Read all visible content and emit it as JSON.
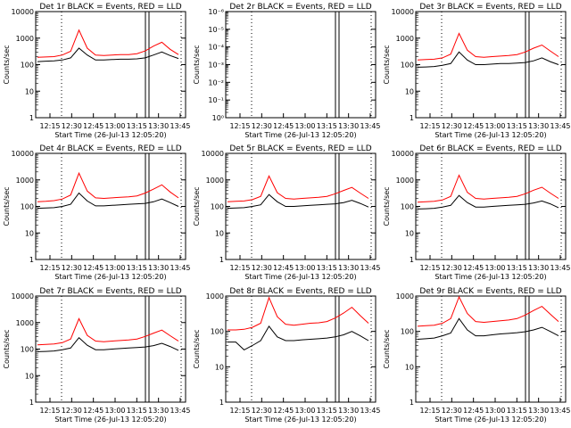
{
  "chart_data": [
    {
      "type": "line",
      "title": "Det 1r BLACK = Events, RED = LLD",
      "xlabel": "Start Time (26-Jul-13 12:05:20)",
      "ylabel": "Counts/sec",
      "yscale": "log",
      "ylim": [
        1,
        10000
      ],
      "yticks": [
        "1",
        "10",
        "100",
        "1000",
        "10000"
      ],
      "xticks": [
        "12:15",
        "12:30",
        "12:45",
        "13:00",
        "13:15",
        "13:30",
        "13:45"
      ],
      "series": [
        {
          "name": "Events",
          "color": "#000000",
          "values": [
            130,
            135,
            140,
            150,
            180,
            420,
            230,
            150,
            150,
            155,
            160,
            160,
            165,
            180,
            230,
            300,
            220,
            170
          ]
        },
        {
          "name": "LLD",
          "color": "#ff0000",
          "values": [
            190,
            195,
            200,
            230,
            320,
            2000,
            420,
            230,
            220,
            230,
            240,
            240,
            260,
            330,
            500,
            700,
            380,
            240
          ]
        }
      ]
    },
    {
      "type": "line",
      "title": "Det 2r BLACK = Events, RED = LLD",
      "xlabel": "Start Time (26-Jul-13 12:05:20)",
      "ylabel": "Counts/sec",
      "yscale": "log",
      "ylim": [
        1,
        1e-06
      ],
      "yticks": [
        "10⁰",
        "10⁻¹",
        "10⁻²",
        "10⁻³",
        "10⁻⁴",
        "10⁻⁵",
        "10⁻⁶"
      ],
      "xticks": [
        "12:15",
        "12:30",
        "12:45",
        "13:00",
        "13:15",
        "13:30",
        "13:45"
      ],
      "series": []
    },
    {
      "type": "line",
      "title": "Det 3r BLACK = Events, RED = LLD",
      "xlabel": "Start Time (26-Jul-13 12:05:20)",
      "ylabel": "Counts/sec",
      "yscale": "log",
      "ylim": [
        1,
        10000
      ],
      "yticks": [
        "1",
        "10",
        "100",
        "1000",
        "10000"
      ],
      "xticks": [
        "12:15",
        "12:30",
        "12:45",
        "13:00",
        "13:15",
        "13:30",
        "13:45"
      ],
      "series": [
        {
          "name": "Events",
          "color": "#000000",
          "values": [
            80,
            82,
            85,
            95,
            110,
            300,
            150,
            100,
            100,
            105,
            110,
            110,
            115,
            120,
            140,
            180,
            130,
            100
          ]
        },
        {
          "name": "LLD",
          "color": "#ff0000",
          "values": [
            150,
            155,
            160,
            180,
            250,
            1500,
            350,
            200,
            190,
            200,
            210,
            220,
            240,
            300,
            420,
            550,
            330,
            200
          ]
        }
      ]
    },
    {
      "type": "line",
      "title": "Det 4r BLACK = Events, RED = LLD",
      "xlabel": "Start Time (26-Jul-13 12:05:20)",
      "ylabel": "Counts/sec",
      "yscale": "log",
      "ylim": [
        1,
        10000
      ],
      "yticks": [
        "1",
        "10",
        "100",
        "1000",
        "10000"
      ],
      "xticks": [
        "12:15",
        "12:30",
        "12:45",
        "13:00",
        "13:15",
        "13:30",
        "13:45"
      ],
      "series": [
        {
          "name": "Events",
          "color": "#000000",
          "values": [
            85,
            88,
            90,
            100,
            120,
            320,
            160,
            105,
            105,
            110,
            115,
            120,
            125,
            130,
            150,
            190,
            140,
            100
          ]
        },
        {
          "name": "LLD",
          "color": "#ff0000",
          "values": [
            150,
            155,
            165,
            190,
            270,
            1800,
            380,
            210,
            200,
            210,
            220,
            230,
            250,
            320,
            450,
            650,
            350,
            210
          ]
        }
      ]
    },
    {
      "type": "line",
      "title": "Det 5r BLACK = Events, RED = LLD",
      "xlabel": "Start Time (26-Jul-13 12:05:20)",
      "ylabel": "Counts/sec",
      "yscale": "log",
      "ylim": [
        1,
        10000
      ],
      "yticks": [
        "1",
        "10",
        "100",
        "1000",
        "10000"
      ],
      "xticks": [
        "12:15",
        "12:30",
        "12:45",
        "13:00",
        "13:15",
        "13:30",
        "13:45"
      ],
      "series": [
        {
          "name": "Events",
          "color": "#000000",
          "values": [
            85,
            88,
            90,
            100,
            115,
            280,
            150,
            100,
            100,
            105,
            110,
            115,
            120,
            125,
            140,
            170,
            130,
            95
          ]
        },
        {
          "name": "LLD",
          "color": "#ff0000",
          "values": [
            150,
            155,
            160,
            180,
            240,
            1400,
            330,
            200,
            190,
            200,
            210,
            220,
            240,
            300,
            400,
            520,
            320,
            200
          ]
        }
      ]
    },
    {
      "type": "line",
      "title": "Det 6r BLACK = Events, RED = LLD",
      "xlabel": "Start Time (26-Jul-13 12:05:20)",
      "ylabel": "Counts/sec",
      "yscale": "log",
      "ylim": [
        1,
        10000
      ],
      "yticks": [
        "1",
        "10",
        "100",
        "1000",
        "10000"
      ],
      "xticks": [
        "12:15",
        "12:30",
        "12:45",
        "13:00",
        "13:15",
        "13:30",
        "13:45"
      ],
      "series": [
        {
          "name": "Events",
          "color": "#000000",
          "values": [
            80,
            82,
            85,
            95,
            110,
            260,
            140,
            95,
            95,
            100,
            105,
            110,
            115,
            120,
            135,
            160,
            125,
            90
          ]
        },
        {
          "name": "LLD",
          "color": "#ff0000",
          "values": [
            145,
            150,
            155,
            175,
            240,
            1500,
            340,
            200,
            190,
            200,
            210,
            220,
            240,
            300,
            410,
            530,
            320,
            200
          ]
        }
      ]
    },
    {
      "type": "line",
      "title": "Det 7r BLACK = Events, RED = LLD",
      "xlabel": "Start Time (26-Jul-13 12:05:20)",
      "ylabel": "Counts/sec",
      "yscale": "log",
      "ylim": [
        1,
        10000
      ],
      "yticks": [
        "1",
        "10",
        "100",
        "1000",
        "10000"
      ],
      "xticks": [
        "12:15",
        "12:30",
        "12:45",
        "13:00",
        "13:15",
        "13:30",
        "13:45"
      ],
      "series": [
        {
          "name": "Events",
          "color": "#000000",
          "values": [
            80,
            82,
            85,
            95,
            110,
            270,
            140,
            95,
            95,
            100,
            105,
            110,
            115,
            120,
            135,
            165,
            125,
            90
          ]
        },
        {
          "name": "LLD",
          "color": "#ff0000",
          "values": [
            145,
            150,
            155,
            175,
            240,
            1400,
            330,
            200,
            190,
            200,
            210,
            220,
            240,
            300,
            400,
            520,
            320,
            200
          ]
        }
      ]
    },
    {
      "type": "line",
      "title": "Det 8r BLACK = Events, RED = LLD",
      "xlabel": "Start Time (26-Jul-13 12:05:20)",
      "ylabel": "Counts/sec",
      "yscale": "log",
      "ylim": [
        1,
        1000
      ],
      "yticks": [
        "1",
        "10",
        "100",
        "1000"
      ],
      "xticks": [
        "12:15",
        "12:30",
        "12:45",
        "13:00",
        "13:15",
        "13:30",
        "13:45"
      ],
      "series": [
        {
          "name": "Events",
          "color": "#000000",
          "values": [
            50,
            50,
            30,
            40,
            55,
            140,
            70,
            55,
            55,
            58,
            60,
            62,
            65,
            70,
            80,
            100,
            75,
            55
          ]
        },
        {
          "name": "LLD",
          "color": "#ff0000",
          "values": [
            110,
            110,
            115,
            130,
            170,
            900,
            260,
            160,
            150,
            160,
            170,
            175,
            190,
            240,
            330,
            480,
            280,
            170
          ]
        }
      ]
    },
    {
      "type": "line",
      "title": "Det 9r BLACK = Events, RED = LLD",
      "xlabel": "Start Time (26-Jul-13 12:05:20)",
      "ylabel": "Counts/sec",
      "yscale": "log",
      "ylim": [
        1,
        1000
      ],
      "yticks": [
        "1",
        "10",
        "100",
        "1000"
      ],
      "xticks": [
        "12:15",
        "12:30",
        "12:45",
        "13:00",
        "13:15",
        "13:30",
        "13:45"
      ],
      "series": [
        {
          "name": "Events",
          "color": "#000000",
          "values": [
            60,
            62,
            65,
            75,
            90,
            230,
            110,
            75,
            75,
            80,
            85,
            88,
            92,
            98,
            110,
            130,
            100,
            75
          ]
        },
        {
          "name": "LLD",
          "color": "#ff0000",
          "values": [
            140,
            145,
            150,
            170,
            230,
            1300,
            320,
            190,
            180,
            190,
            200,
            210,
            230,
            290,
            390,
            510,
            310,
            190
          ]
        }
      ]
    }
  ]
}
